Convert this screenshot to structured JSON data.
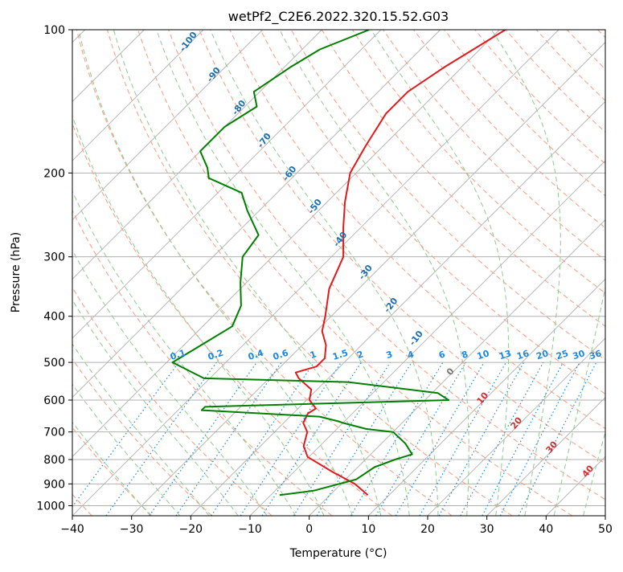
{
  "chart_data": {
    "type": "line",
    "subtype": "skew-t log-p",
    "title": "wetPf2_C2E6.2022.320.15.52.G03",
    "xlabel": "Temperature (°C)",
    "ylabel": "Pressure (hPa)",
    "xlim": [
      -40,
      50
    ],
    "ylim": [
      1050,
      100
    ],
    "x_ticks": [
      -40,
      -30,
      -20,
      -10,
      0,
      10,
      20,
      30,
      40,
      50
    ],
    "y_ticks": [
      100,
      200,
      300,
      400,
      500,
      600,
      700,
      800,
      900,
      1000
    ],
    "y_scale": "log",
    "grid": true,
    "colors": {
      "temperature": "#e31a1c",
      "dewpoint": "#008000",
      "isotherm": "#b0b0b0",
      "dry_adiabat": "#fc9a7c",
      "moist_adiabat": "#8fc98f",
      "mixing_ratio": "#1e88e5"
    },
    "series": [
      {
        "key": "temperature",
        "pressure": [
          100,
          120,
          135,
          150,
          175,
          200,
          230,
          260,
          300,
          350,
          400,
          430,
          460,
          490,
          510,
          525,
          540,
          570,
          600,
          625,
          640,
          670,
          700,
          750,
          790,
          850,
          900,
          950
        ],
        "values": [
          -49,
          -53,
          -55,
          -55,
          -53,
          -51,
          -47,
          -43,
          -38,
          -35,
          -31,
          -29,
          -26,
          -24,
          -24,
          -26.5,
          -25,
          -21,
          -19.5,
          -17,
          -17.5,
          -16.7,
          -14.5,
          -12.7,
          -10.2,
          -3.4,
          2.3,
          6.4
        ]
      },
      {
        "key": "dewpoint",
        "pressure": [
          100,
          110,
          120,
          135,
          145,
          160,
          180,
          195,
          205,
          220,
          240,
          270,
          300,
          340,
          380,
          420,
          500,
          540,
          550,
          580,
          600,
          620,
          630,
          650,
          665,
          670,
          690,
          700,
          740,
          780,
          800,
          830,
          880,
          930,
          950
        ],
        "values": [
          -72,
          -77,
          -79,
          -81,
          -78,
          -80,
          -80,
          -76,
          -74,
          -66,
          -62,
          -56,
          -55,
          -51,
          -47,
          -45,
          -49,
          -41,
          -16,
          1,
          4,
          -36,
          -36,
          -15,
          -11,
          -10,
          -5,
          0,
          4,
          7,
          5,
          2.8,
          1.8,
          -3.5,
          -8.5
        ]
      }
    ],
    "mixing_ratio_labels": [
      "0.1",
      "0.2",
      "0.4",
      "0.6",
      "1",
      "1.5",
      "2",
      "3",
      "4",
      "6",
      "8",
      "10",
      "13",
      "16",
      "20",
      "25",
      "30",
      "36"
    ],
    "dry_adiabat_labels": [
      "-100",
      "-90",
      "-80",
      "-70",
      "-60",
      "-50",
      "-40",
      "-30",
      "-20",
      "-10"
    ],
    "moist_adiabat_labels": [
      "0",
      "10",
      "20",
      "30",
      "40"
    ]
  }
}
